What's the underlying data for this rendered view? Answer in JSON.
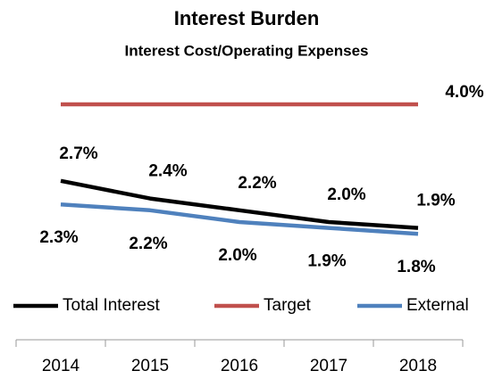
{
  "chart_data": {
    "type": "line",
    "title": "Interest Burden",
    "subtitle": "Interest Cost/Operating Expenses",
    "categories": [
      "2014",
      "2015",
      "2016",
      "2017",
      "2018"
    ],
    "series": [
      {
        "name": "Total Interest",
        "color": "#000000",
        "values": [
          2.7,
          2.4,
          2.2,
          2.0,
          1.9
        ],
        "value_labels": [
          "2.7%",
          "2.4%",
          "2.2%",
          "2.0%",
          "1.9%"
        ]
      },
      {
        "name": "Target",
        "color": "#c0504d",
        "values": [
          4.0,
          4.0,
          4.0,
          4.0,
          4.0
        ],
        "value_labels": [
          null,
          null,
          null,
          null,
          "4.0%"
        ]
      },
      {
        "name": "External",
        "color": "#4f81bd",
        "values": [
          2.3,
          2.2,
          2.0,
          1.9,
          1.8
        ],
        "value_labels": [
          "2.3%",
          "2.2%",
          "2.0%",
          "1.9%",
          "1.8%"
        ]
      }
    ],
    "ylim": [
      0,
      4.5
    ],
    "legend": "bottom"
  }
}
